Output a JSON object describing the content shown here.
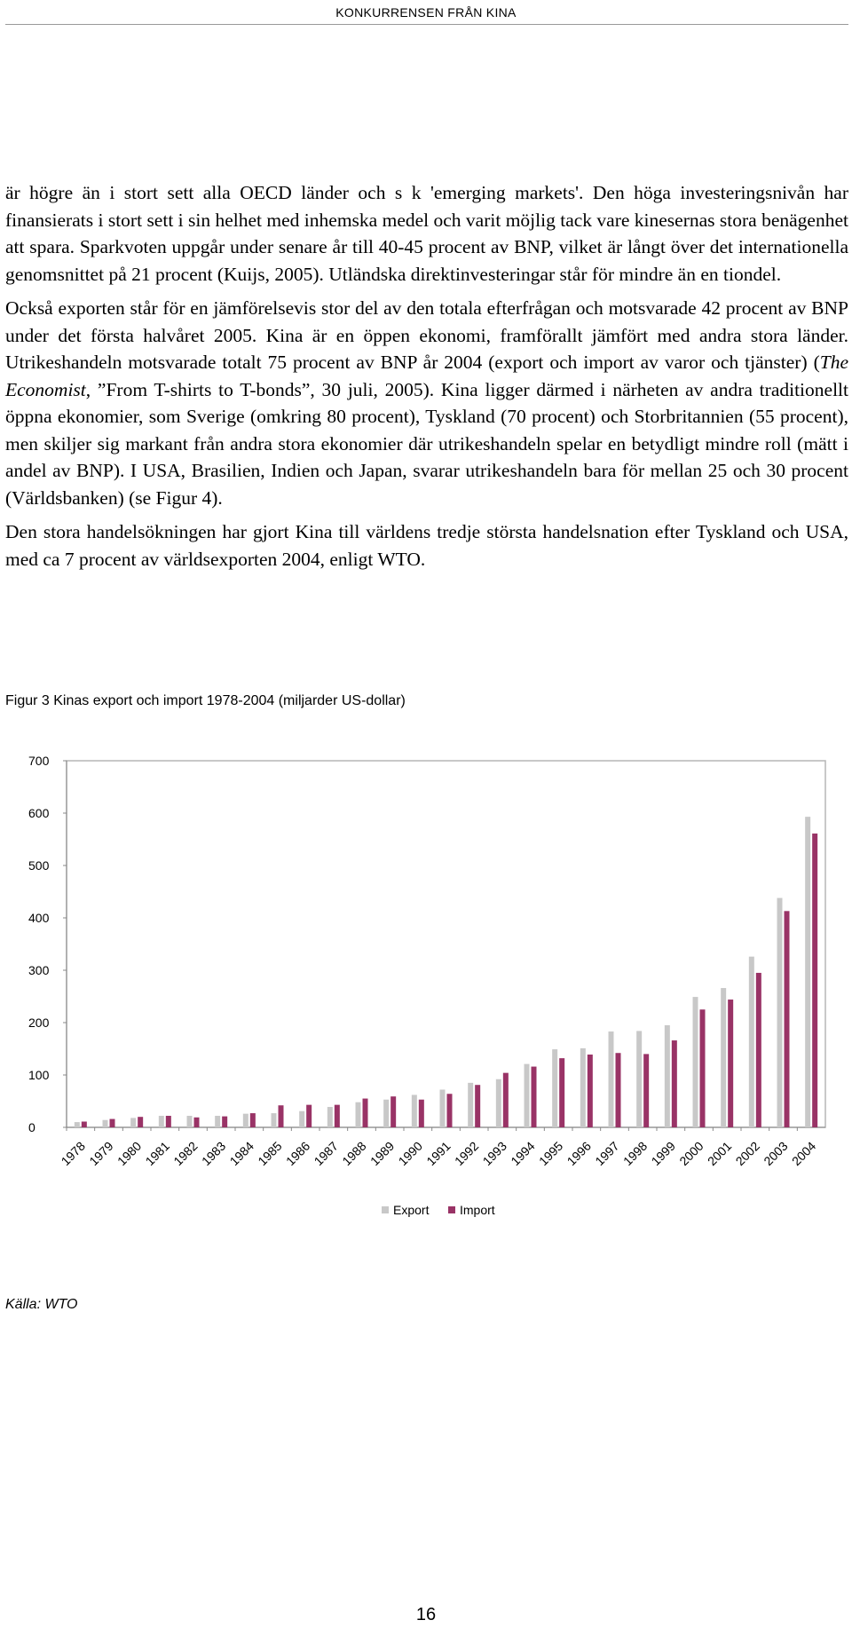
{
  "header": "KONKURRENSEN FRÅN KINA",
  "paragraphs": [
    "är högre än i stort sett alla OECD länder och s k 'emerging markets'. Den höga investeringsnivån har finansierats i stort sett i sin helhet med inhemska medel och varit möjlig tack vare kinesernas stora benägenhet att spara. Sparkvoten uppgår under senare år till 40-45 procent av BNP, vilket är långt över det internationella genomsnittet på 21 procent (Kuijs, 2005). Utländska direktinvesteringar står för mindre än en tiondel.",
    "Också exporten står för en jämförelsevis stor del av den totala efterfrågan och motsvarade 42 procent av BNP under det första halvåret 2005. Kina är en öppen ekonomi, framförallt jämfört med andra stora länder. Utrikeshandeln motsvarade totalt 75 procent av BNP år 2004 (export och import av varor och tjänster) (The Economist, ”From T-shirts to T-bonds”, 30 juli, 2005). Kina ligger därmed i närheten av andra traditionellt öppna ekonomier, som Sverige (omkring 80 procent), Tyskland (70 procent) och Storbritannien (55 procent), men skiljer sig markant från andra stora ekonomier där utrikeshandeln spelar en betydligt mindre roll (mätt i andel av BNP). I USA, Brasilien, Indien och Japan, svarar utrikeshandeln bara för mellan 25 och 30 procent (Världsbanken) (se Figur 4).",
    "Den stora handelsökningen har gjort Kina till världens tredje största handelsnation efter Tyskland och USA, med ca 7 procent av världsexporten 2004, enligt WTO."
  ],
  "figure_caption": "Figur 3 Kinas export och import 1978-2004 (miljarder US-dollar)",
  "source": "Källa: WTO",
  "page_number": "16",
  "chart_data": {
    "type": "bar",
    "title": "Figur 3 Kinas export och import 1978-2004 (miljarder US-dollar)",
    "categories": [
      "1978",
      "1979",
      "1980",
      "1981",
      "1982",
      "1983",
      "1984",
      "1985",
      "1986",
      "1987",
      "1988",
      "1989",
      "1990",
      "1991",
      "1992",
      "1993",
      "1994",
      "1995",
      "1996",
      "1997",
      "1998",
      "1999",
      "2000",
      "2001",
      "2002",
      "2003",
      "2004"
    ],
    "series": [
      {
        "name": "Export",
        "color": "#c8c8c8",
        "values": [
          10,
          14,
          18,
          22,
          22,
          22,
          26,
          27,
          31,
          39,
          48,
          53,
          62,
          72,
          85,
          92,
          121,
          149,
          151,
          183,
          184,
          195,
          249,
          266,
          326,
          438,
          593
        ]
      },
      {
        "name": "Import",
        "color": "#993366",
        "values": [
          11,
          16,
          20,
          22,
          19,
          21,
          27,
          42,
          43,
          43,
          55,
          59,
          53,
          64,
          81,
          104,
          116,
          132,
          139,
          142,
          140,
          166,
          225,
          244,
          295,
          413,
          561
        ]
      }
    ],
    "ylim": [
      0,
      700
    ],
    "yticks": [
      0,
      100,
      200,
      300,
      400,
      500,
      600,
      700
    ],
    "xlabel": "",
    "ylabel": "",
    "grid": false,
    "legend": "bottom-center"
  }
}
